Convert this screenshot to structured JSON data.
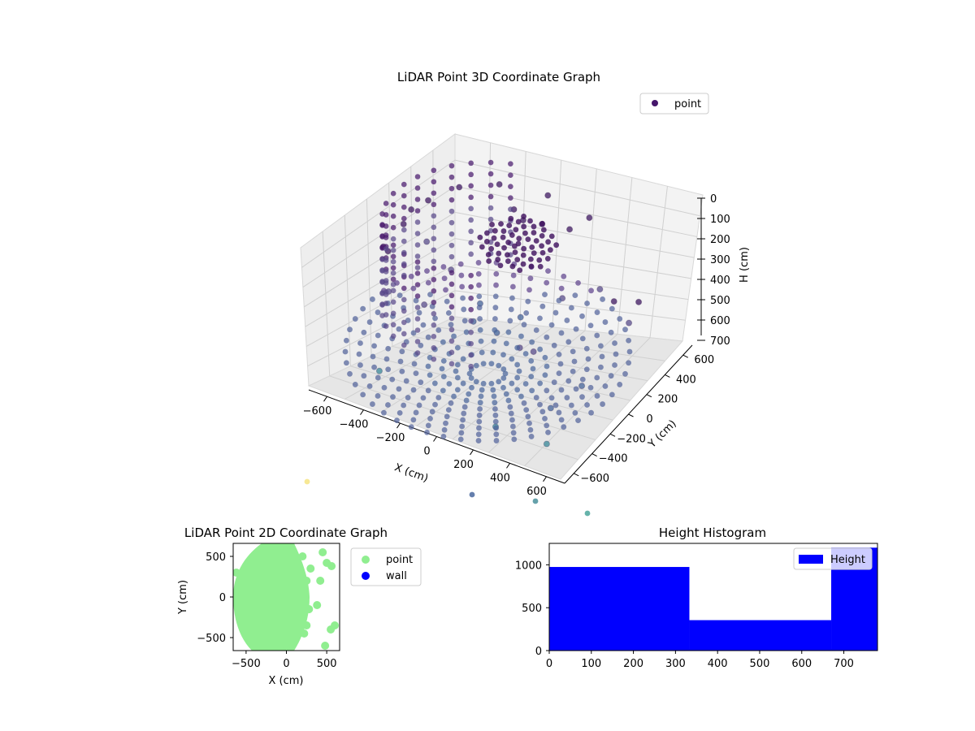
{
  "chart_data": [
    {
      "type": "scatter3d",
      "title": "LiDAR Point 3D Coordinate Graph",
      "xlabel": "X (cm)",
      "ylabel": "Y (cm)",
      "zlabel": "H (cm)",
      "xlim": [
        -700,
        700
      ],
      "ylim": [
        -700,
        700
      ],
      "zlim": [
        0,
        760
      ],
      "z_inverted": true,
      "x_ticks": [
        "−600",
        "−400",
        "−200",
        "0",
        "200",
        "400",
        "600"
      ],
      "y_ticks": [
        "−600",
        "−400",
        "−200",
        "0",
        "200",
        "400",
        "600"
      ],
      "z_ticks": [
        "0",
        "100",
        "200",
        "300",
        "400",
        "500",
        "600",
        "700"
      ],
      "grid": true,
      "legend": {
        "placement": "top-right",
        "entries": [
          "point"
        ]
      },
      "series": [
        {
          "name": "point",
          "points": [
            [
              -80,
              -90,
              500
            ],
            [
              -120,
              70,
              500
            ],
            [
              100,
              80,
              500
            ],
            [
              60,
              -110,
              500
            ],
            [
              -300,
              -200,
              430
            ],
            [
              -320,
              150,
              430
            ],
            [
              250,
              250,
              430
            ],
            [
              260,
              -260,
              430
            ],
            [
              -450,
              -300,
              360
            ],
            [
              -480,
              200,
              360
            ],
            [
              420,
              330,
              360
            ],
            [
              380,
              -350,
              360
            ],
            [
              -550,
              -100,
              280
            ],
            [
              -560,
              100,
              240
            ],
            [
              -520,
              300,
              200
            ],
            [
              -420,
              450,
              170
            ],
            [
              -250,
              560,
              150
            ],
            [
              0,
              600,
              140
            ],
            [
              250,
              560,
              150
            ],
            [
              -150,
              520,
              230
            ],
            [
              150,
              540,
              240
            ],
            [
              -50,
              420,
              200
            ],
            [
              50,
              430,
              190
            ],
            [
              -600,
              -50,
              300
            ],
            [
              -590,
              250,
              250
            ],
            [
              600,
              120,
              250
            ],
            [
              650,
              300,
              330
            ],
            [
              620,
              250,
              430
            ],
            [
              600,
              -250,
              520
            ],
            [
              500,
              -400,
              600
            ],
            [
              300,
              -620,
              660
            ],
            [
              -380,
              -550,
              640
            ],
            [
              550,
              -550,
              700
            ]
          ]
        }
      ]
    },
    {
      "type": "scatter",
      "title": "LiDAR Point 2D Coordinate Graph",
      "xlabel": "X (cm)",
      "ylabel": "Y (cm)",
      "xlim": [
        -660,
        660
      ],
      "ylim": [
        -660,
        660
      ],
      "x_ticks": [
        "−500",
        "0",
        "500"
      ],
      "y_ticks": [
        "−500",
        "0",
        "500"
      ],
      "legend": {
        "placement": "outside-right",
        "entries": [
          "point",
          "wall"
        ]
      },
      "series": [
        {
          "name": "point",
          "color": "#90ee90",
          "points": [
            [
              -600,
              0
            ],
            [
              -450,
              450
            ],
            [
              -250,
              580
            ],
            [
              0,
              620
            ],
            [
              200,
              500
            ],
            [
              250,
              200
            ],
            [
              280,
              -150
            ],
            [
              220,
              -450
            ],
            [
              0,
              -600
            ],
            [
              -300,
              -580
            ],
            [
              -550,
              -350
            ],
            [
              -620,
              300
            ],
            [
              500,
              420
            ],
            [
              560,
              380
            ],
            [
              420,
              200
            ],
            [
              380,
              -100
            ],
            [
              550,
              -400
            ],
            [
              600,
              -350
            ],
            [
              480,
              -600
            ],
            [
              450,
              550
            ],
            [
              300,
              350
            ],
            [
              250,
              -350
            ]
          ]
        },
        {
          "name": "wall",
          "color": "#0000ff",
          "points": []
        }
      ]
    },
    {
      "type": "bar",
      "title": "Height Histogram",
      "xlim": [
        0,
        780
      ],
      "ylim": [
        0,
        1250
      ],
      "x_ticks": [
        "0",
        "100",
        "200",
        "300",
        "400",
        "500",
        "600",
        "700"
      ],
      "y_ticks": [
        "0",
        "500",
        "1000"
      ],
      "legend": {
        "placement": "top-right",
        "entries": [
          "Height"
        ]
      },
      "series": [
        {
          "name": "Height",
          "color": "#0000ff",
          "bins": [
            {
              "from": 0,
              "to": 333,
              "count": 975
            },
            {
              "from": 333,
              "to": 670,
              "count": 355
            },
            {
              "from": 670,
              "to": 780,
              "count": 1200
            }
          ]
        }
      ]
    }
  ]
}
